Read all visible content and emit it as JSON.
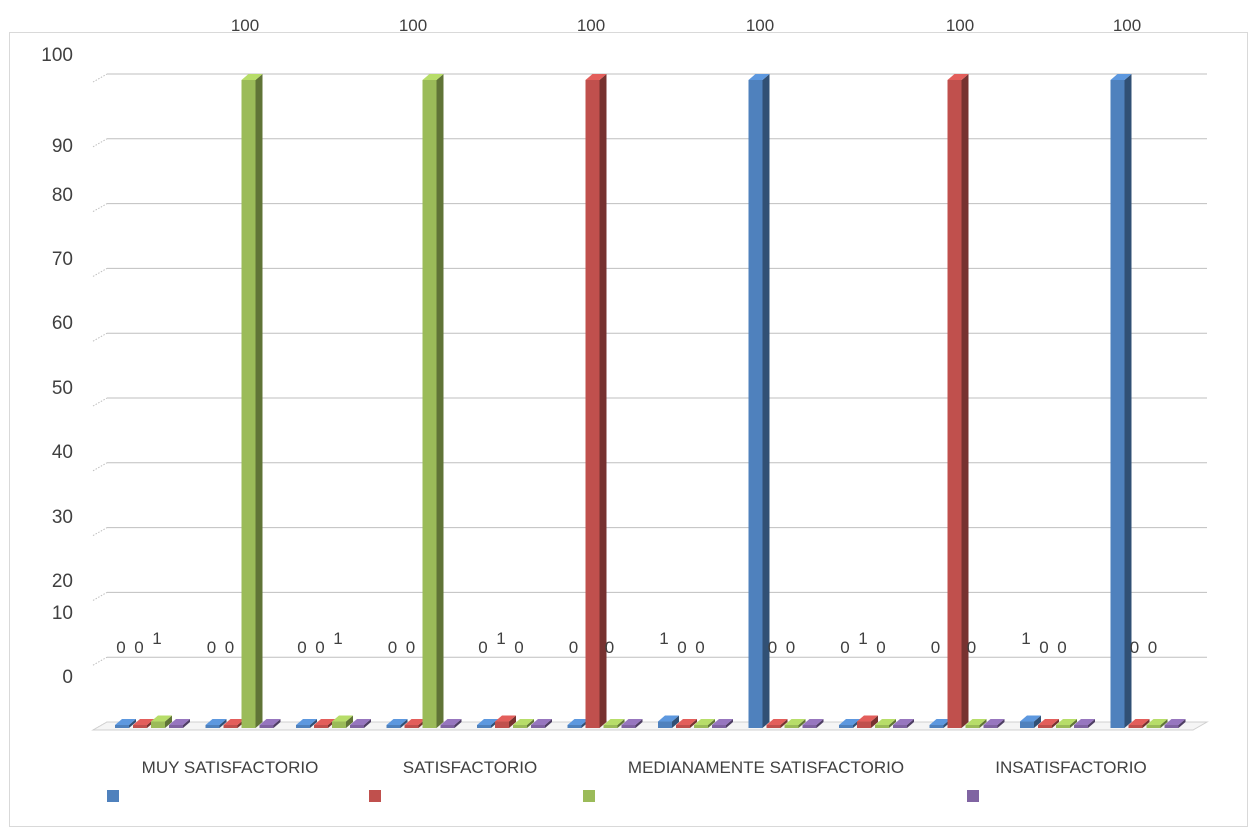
{
  "chart_data": {
    "type": "bar",
    "style": "3d-clustered-column",
    "categories": [
      "MUY SATISFACTORIO",
      "SATISFACTORIO",
      "MEDIANAMENTE SATISFACTORIO",
      "INSATISFACTORIO"
    ],
    "groups_per_category": 4,
    "group_values": [
      [
        0,
        0,
        1,
        0
      ],
      [
        0,
        0,
        100,
        0
      ],
      [
        0,
        0,
        1,
        0
      ],
      [
        0,
        0,
        100,
        0
      ],
      [
        0,
        1,
        0,
        0
      ],
      [
        0,
        100,
        0,
        0
      ],
      [
        1,
        0,
        0,
        0
      ],
      [
        100,
        0,
        0,
        0
      ],
      [
        0,
        1,
        0,
        0
      ],
      [
        0,
        100,
        0,
        0
      ],
      [
        1,
        0,
        0,
        0
      ],
      [
        100,
        0,
        0,
        0
      ]
    ],
    "group_labels": [
      [
        "0",
        "0",
        "1",
        ""
      ],
      [
        "0",
        "0",
        "",
        ""
      ],
      [
        "0",
        "0",
        "1",
        ""
      ],
      [
        "0",
        "0",
        "",
        ""
      ],
      [
        "0",
        "1",
        "0",
        ""
      ],
      [
        "0",
        "",
        "0",
        ""
      ],
      [
        "1",
        "0",
        "0",
        ""
      ],
      [
        "",
        "0",
        "0",
        ""
      ],
      [
        "0",
        "1",
        "0",
        ""
      ],
      [
        "0",
        "",
        "0",
        ""
      ],
      [
        "1",
        "0",
        "0",
        ""
      ],
      [
        "",
        "0",
        "0",
        ""
      ]
    ],
    "top_labels": [
      "100",
      "100",
      "100",
      "100",
      "100",
      "100"
    ],
    "yticks": [
      "0",
      "10",
      "20",
      "30",
      "40",
      "50",
      "60",
      "70",
      "80",
      "90",
      "100"
    ],
    "ylim": [
      0,
      100
    ],
    "grid": true,
    "legend_placement": "bottom",
    "series_colors": [
      "#4f81bd",
      "#c0504d",
      "#9bbb59",
      "#8064a2"
    ],
    "title": "",
    "xlabel": "",
    "ylabel": ""
  }
}
